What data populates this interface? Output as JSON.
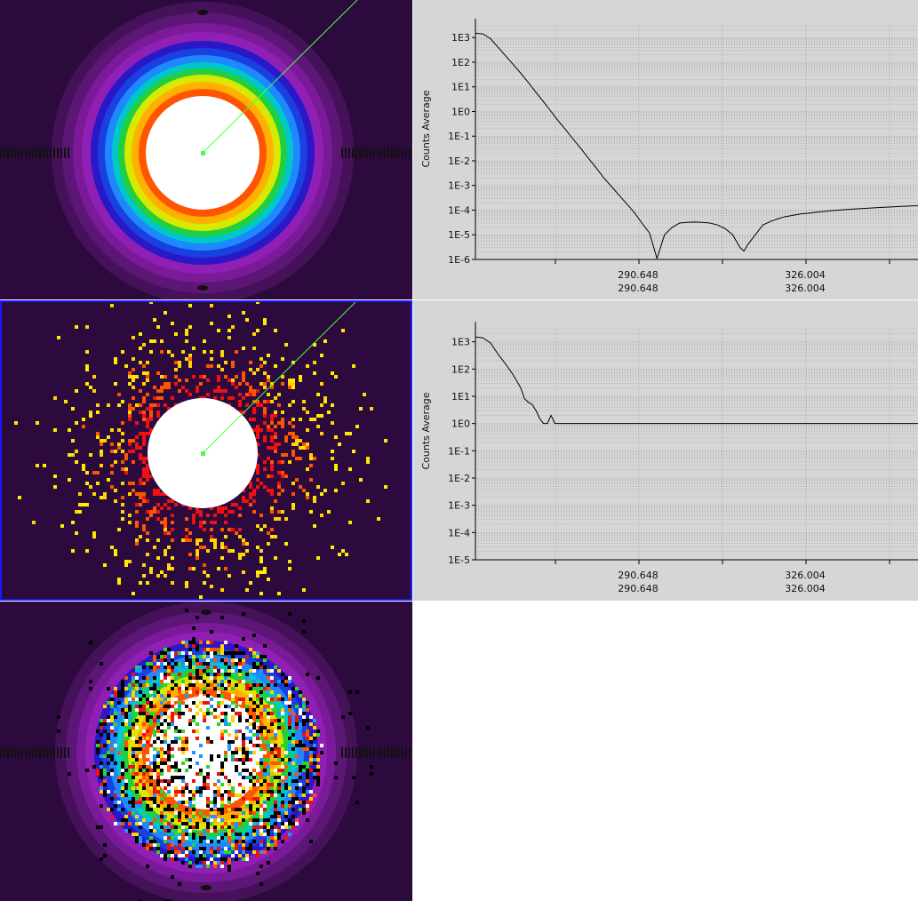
{
  "colors": {
    "image_background": "#2d0a3d",
    "plot_background": "#d6d6d6",
    "selection_border": "#1a1aff",
    "profile_line": "#44ff44",
    "curve": "#000000",
    "grid": "#8a8a8a"
  },
  "images": [
    {
      "name": "model-image",
      "kind": "smooth-rings"
    },
    {
      "name": "data-image",
      "kind": "speckle",
      "selected": true
    },
    {
      "name": "residual-image",
      "kind": "noisy-rings"
    }
  ],
  "plots": [
    {
      "ylabel": "Counts Average",
      "y_ticks": [
        "1E3",
        "1E2",
        "1E1",
        "1E0",
        "1E-1",
        "1E-2",
        "1E-3",
        "1E-4",
        "1E-5",
        "1E-6"
      ],
      "x_ticks": [
        {
          "top": "290.648",
          "bottom": "290.648"
        },
        {
          "top": "326.004",
          "bottom": "326.004"
        }
      ],
      "chart_data": {
        "type": "line",
        "yscale": "log",
        "ylim": [
          1e-06,
          3000
        ],
        "xlim": [
          255,
          372
        ],
        "x": [
          255,
          257,
          259,
          261,
          263,
          265,
          267,
          269,
          271,
          273,
          275,
          277,
          279,
          281,
          283,
          285,
          287,
          289,
          291,
          293,
          295,
          297,
          299,
          301,
          303,
          305,
          307,
          309,
          311,
          313,
          315,
          317,
          319,
          321,
          323,
          325,
          326,
          327,
          329,
          331,
          333,
          335,
          337,
          339,
          341,
          343,
          345,
          347,
          349,
          351,
          353,
          355,
          357,
          359,
          361,
          363,
          365,
          367,
          369,
          371,
          372
        ],
        "y": [
          1500,
          1400,
          900,
          400,
          180,
          80,
          35,
          15,
          6,
          2.5,
          1,
          0.4,
          0.17,
          0.07,
          0.03,
          0.012,
          0.005,
          0.002,
          0.0009,
          0.0004,
          0.00018,
          8e-05,
          3e-05,
          1.2e-05,
          1.1e-06,
          1e-05,
          2e-05,
          3e-05,
          3.2e-05,
          3.3e-05,
          3.2e-05,
          3e-05,
          2.5e-05,
          1.8e-05,
          1e-05,
          3e-06,
          2.2e-06,
          4e-06,
          1e-05,
          2.5e-05,
          3.5e-05,
          4.5e-05,
          5.5e-05,
          6.2e-05,
          7e-05,
          7.5e-05,
          8.2e-05,
          8.8e-05,
          9.5e-05,
          0.0001,
          0.000105,
          0.00011,
          0.000115,
          0.00012,
          0.000125,
          0.00013,
          0.000135,
          0.00014,
          0.000145,
          0.00015,
          0.00015
        ]
      }
    },
    {
      "ylabel": "Counts Average",
      "y_ticks": [
        "1E3",
        "1E2",
        "1E1",
        "1E0",
        "1E-1",
        "1E-2",
        "1E-3",
        "1E-4",
        "1E-5"
      ],
      "x_ticks": [
        {
          "top": "290.648",
          "bottom": "290.648"
        },
        {
          "top": "326.004",
          "bottom": "326.004"
        }
      ],
      "chart_data": {
        "type": "line",
        "yscale": "log",
        "ylim": [
          1e-05,
          3000
        ],
        "xlim": [
          255,
          372
        ],
        "x": [
          255,
          257,
          259,
          261,
          263,
          265,
          267,
          268,
          269,
          270,
          271,
          272,
          273,
          274,
          275,
          276,
          277,
          278,
          279,
          280,
          290,
          300,
          310,
          320,
          330,
          340,
          350,
          360,
          372
        ],
        "y": [
          1500,
          1400,
          900,
          350,
          150,
          60,
          20,
          8,
          6,
          5,
          3,
          1.5,
          1,
          1,
          2,
          1,
          1,
          1,
          1,
          1,
          1,
          1,
          1,
          1,
          1,
          1,
          1,
          1,
          1
        ]
      }
    }
  ]
}
